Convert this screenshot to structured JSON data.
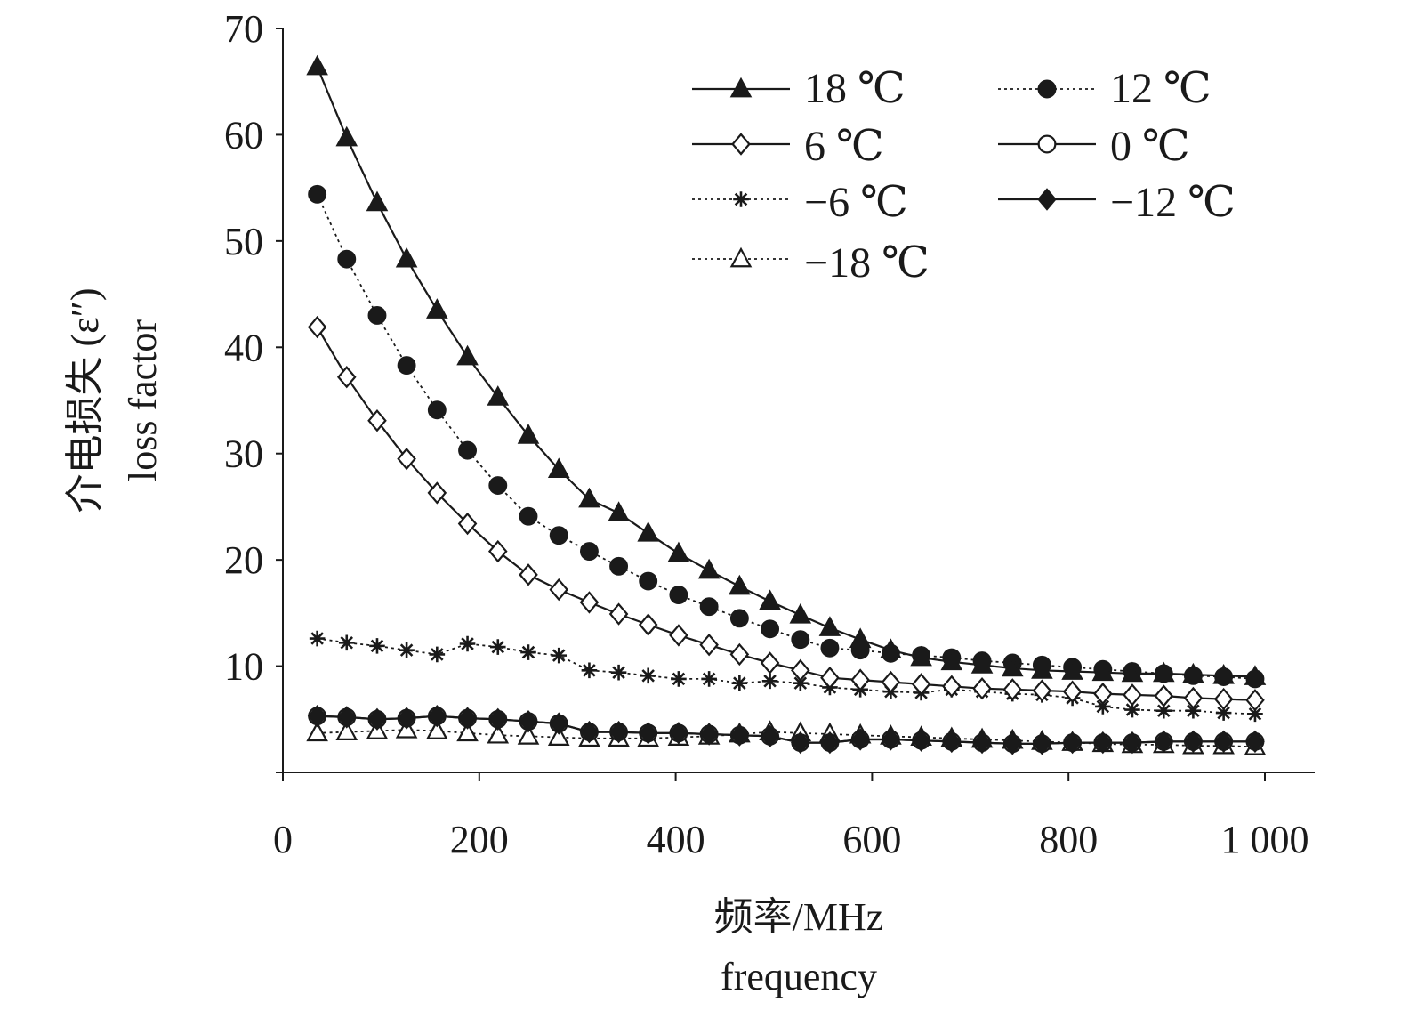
{
  "chart_data": {
    "type": "line",
    "xlabel_cn": "频率/MHz",
    "xlabel_en": "frequency",
    "ylabel_cn": "介电损失 (ε″)",
    "ylabel_en": "loss factor",
    "xlim": [
      0,
      1050
    ],
    "ylim": [
      0,
      70
    ],
    "xticks": [
      0,
      200,
      400,
      600,
      800,
      1000
    ],
    "xtick_labels": [
      "0",
      "200",
      "400",
      "600",
      "800",
      "1 000"
    ],
    "yticks": [
      10,
      20,
      30,
      40,
      50,
      60,
      70
    ],
    "ytick_labels": [
      "10",
      "20",
      "30",
      "40",
      "50",
      "60",
      "70"
    ],
    "grid": false,
    "legend_position": "top-right",
    "x": [
      35,
      65,
      96,
      126,
      157,
      188,
      219,
      250,
      281,
      312,
      342,
      372,
      403,
      434,
      465,
      496,
      527,
      557,
      588,
      619,
      650,
      681,
      712,
      743,
      773,
      804,
      835,
      865,
      897,
      927,
      958,
      990
    ],
    "series": [
      {
        "name": "18 ℃",
        "marker": "triangle",
        "fill": "filled",
        "dash": "solid",
        "values": [
          66.4,
          59.7,
          53.6,
          48.3,
          43.5,
          39.1,
          35.3,
          31.7,
          28.5,
          25.7,
          24.4,
          22.5,
          20.6,
          19.0,
          17.5,
          16.1,
          14.8,
          13.6,
          12.5,
          11.5,
          10.8,
          10.4,
          10.1,
          9.8,
          9.6,
          9.5,
          9.4,
          9.3,
          9.3,
          9.2,
          9.1,
          9.0
        ]
      },
      {
        "name": "12 ℃",
        "marker": "circle",
        "fill": "filled",
        "dash": "dotted",
        "values": [
          54.4,
          48.3,
          43.0,
          38.3,
          34.1,
          30.3,
          27.0,
          24.1,
          22.3,
          20.8,
          19.4,
          18.0,
          16.7,
          15.6,
          14.5,
          13.5,
          12.5,
          11.7,
          11.5,
          11.2,
          11.0,
          10.8,
          10.5,
          10.3,
          10.1,
          9.9,
          9.7,
          9.5,
          9.3,
          9.1,
          9.0,
          8.8
        ]
      },
      {
        "name": "6 ℃",
        "marker": "diamond",
        "fill": "open",
        "dash": "solid",
        "values": [
          41.9,
          37.2,
          33.1,
          29.5,
          26.3,
          23.4,
          20.8,
          18.6,
          17.2,
          16.0,
          14.9,
          13.9,
          12.9,
          12.0,
          11.1,
          10.3,
          9.6,
          8.9,
          8.7,
          8.5,
          8.3,
          8.1,
          7.9,
          7.8,
          7.7,
          7.6,
          7.4,
          7.3,
          7.2,
          7.0,
          6.9,
          6.8
        ]
      },
      {
        "name": "0 ℃",
        "marker": "circle",
        "fill": "open",
        "dash": "solid",
        "values": [
          5.3,
          5.2,
          5.0,
          5.1,
          5.3,
          5.1,
          5.0,
          4.8,
          4.6,
          3.8,
          3.8,
          3.7,
          3.7,
          3.6,
          3.5,
          3.4,
          2.8,
          2.8,
          3.1,
          3.1,
          3.0,
          2.9,
          2.8,
          2.7,
          2.7,
          2.8,
          2.8,
          2.8,
          2.9,
          2.9,
          2.9,
          2.9
        ]
      },
      {
        "name": "−6 ℃",
        "marker": "star",
        "fill": "filled",
        "dash": "dotted",
        "values": [
          12.6,
          12.2,
          11.9,
          11.5,
          11.1,
          12.1,
          11.8,
          11.3,
          11.0,
          9.6,
          9.4,
          9.1,
          8.8,
          8.8,
          8.4,
          8.6,
          8.4,
          8.0,
          7.8,
          7.6,
          7.5,
          7.8,
          7.6,
          7.4,
          7.3,
          7.0,
          6.2,
          5.9,
          5.8,
          5.8,
          5.6,
          5.5
        ]
      },
      {
        "name": "−12 ℃",
        "marker": "diamond",
        "fill": "filled",
        "dash": "solid",
        "values": [
          5.3,
          5.2,
          5.0,
          5.1,
          5.3,
          5.1,
          5.0,
          4.8,
          4.6,
          3.8,
          3.8,
          3.7,
          3.7,
          3.6,
          3.5,
          3.4,
          2.8,
          2.8,
          3.1,
          3.1,
          3.0,
          2.9,
          2.8,
          2.7,
          2.7,
          2.8,
          2.8,
          2.8,
          2.9,
          2.9,
          2.9,
          2.9
        ]
      },
      {
        "name": "−18 ℃",
        "marker": "triangle",
        "fill": "open",
        "dash": "dotted",
        "values": [
          3.7,
          3.8,
          3.9,
          4.0,
          3.9,
          3.7,
          3.5,
          3.4,
          3.3,
          3.2,
          3.2,
          3.2,
          3.3,
          3.4,
          3.6,
          3.8,
          3.7,
          3.6,
          3.5,
          3.4,
          3.3,
          3.2,
          3.1,
          3.0,
          2.9,
          2.8,
          2.7,
          2.6,
          2.6,
          2.5,
          2.5,
          2.4
        ]
      }
    ],
    "colors": {
      "ink": "#1a1a1a",
      "background": "#ffffff"
    }
  }
}
